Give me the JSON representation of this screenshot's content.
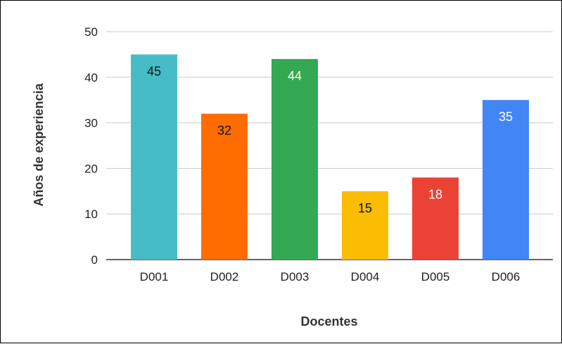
{
  "chart_data": {
    "type": "bar",
    "categories": [
      "D001",
      "D002",
      "D003",
      "D004",
      "D005",
      "D006"
    ],
    "values": [
      45,
      32,
      44,
      15,
      18,
      35
    ],
    "colors": [
      "#46BDC6",
      "#FF6D01",
      "#34A853",
      "#FBBC04",
      "#EA4335",
      "#4285F4"
    ],
    "label_colors": [
      "#111111",
      "#111111",
      "#ffffff",
      "#111111",
      "#ffffff",
      "#ffffff"
    ],
    "title": "",
    "xlabel": "Docentes",
    "ylabel": "Años de experiencia",
    "ylim": [
      0,
      50
    ],
    "yticks": [
      0,
      10,
      20,
      30,
      40,
      50
    ],
    "grid": true,
    "legend": "none"
  }
}
